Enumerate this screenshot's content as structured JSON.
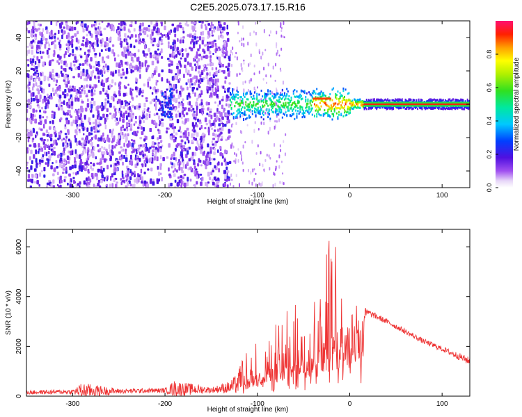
{
  "title": "C2E5.2025.073.17.15.R16",
  "chart_data": [
    {
      "type": "heatmap",
      "xlabel": "Height of straight line (km)",
      "ylabel": "Frequency (Hz)",
      "xlim": [
        -350,
        130
      ],
      "ylim": [
        -50,
        50
      ],
      "x_ticks": [
        -300,
        -200,
        -100,
        0,
        100
      ],
      "y_ticks": [
        -40,
        -20,
        0,
        20,
        40
      ],
      "colorbar": {
        "label": "Normalized spectral amplitude",
        "range": [
          0,
          1
        ],
        "ticks": [
          "0.0",
          "0.2",
          "0.4",
          "0.6",
          "0.8"
        ]
      },
      "features": {
        "noise_region_x": [
          -350,
          -130
        ],
        "signal_band_center_hz": 0,
        "signal_start_x": -130
      }
    },
    {
      "type": "line",
      "xlabel": "Height of straight line (km)",
      "ylabel": "SNR (10 * v/v)",
      "xlim": [
        -350,
        130
      ],
      "ylim": [
        0,
        6700
      ],
      "x_ticks": [
        -300,
        -200,
        -100,
        0,
        100
      ],
      "y_ticks": [
        0,
        2000,
        4000,
        6000
      ],
      "color": "#ee3333",
      "envelope": {
        "x": [
          -350,
          -300,
          -290,
          -250,
          -200,
          -190,
          -150,
          -130,
          -110,
          -90,
          -70,
          -50,
          -40,
          -30,
          -20,
          -10,
          0,
          10,
          20,
          40,
          60,
          80,
          100,
          130
        ],
        "base": [
          150,
          180,
          220,
          200,
          230,
          300,
          250,
          350,
          700,
          1100,
          1300,
          1600,
          1800,
          2000,
          2400,
          2700,
          3200,
          3100,
          3350,
          3000,
          2600,
          2200,
          1900,
          1400
        ],
        "peak": [
          300,
          350,
          800,
          380,
          400,
          900,
          450,
          800,
          1900,
          2700,
          3400,
          4000,
          4500,
          5800,
          6700,
          5400,
          4200,
          4300,
          3600,
          3200,
          2800,
          2400,
          2100,
          1700
        ]
      }
    }
  ]
}
